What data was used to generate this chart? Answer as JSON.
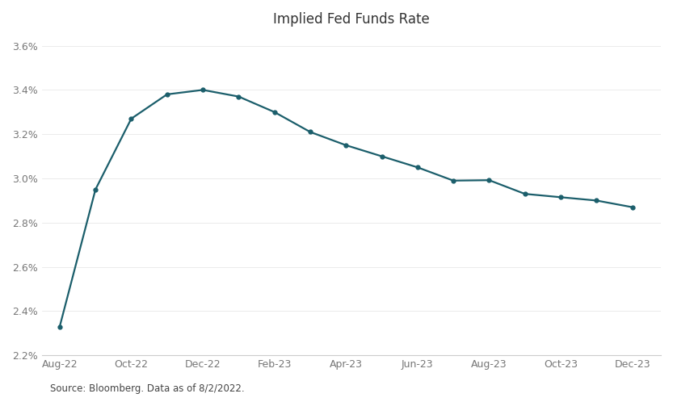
{
  "title": "Implied Fed Funds Rate",
  "source_text": "Source: Bloomberg. Data as of 8/2/2022.",
  "line_color": "#1b5e6b",
  "background_color": "#ffffff",
  "x_tick_labels": [
    "Aug-22",
    "Oct-22",
    "Dec-22",
    "Feb-23",
    "Apr-23",
    "Jun-23",
    "Aug-23",
    "Oct-23",
    "Dec-23"
  ],
  "x_tick_months": [
    0,
    2,
    4,
    6,
    8,
    10,
    12,
    14,
    16
  ],
  "data_points": [
    {
      "month": 0,
      "y": 2.33
    },
    {
      "month": 1,
      "y": 2.95
    },
    {
      "month": 2,
      "y": 3.27
    },
    {
      "month": 3,
      "y": 3.38
    },
    {
      "month": 4,
      "y": 3.4
    },
    {
      "month": 5,
      "y": 3.37
    },
    {
      "month": 6,
      "y": 3.3
    },
    {
      "month": 7,
      "y": 3.21
    },
    {
      "month": 8,
      "y": 3.15
    },
    {
      "month": 9,
      "y": 3.1
    },
    {
      "month": 10,
      "y": 3.05
    },
    {
      "month": 11,
      "y": 2.99
    },
    {
      "month": 12,
      "y": 2.992
    },
    {
      "month": 13,
      "y": 2.93
    },
    {
      "month": 14,
      "y": 2.915
    },
    {
      "month": 15,
      "y": 2.9
    },
    {
      "month": 16,
      "y": 2.87
    }
  ],
  "ylim": [
    2.2,
    3.65
  ],
  "yticks": [
    2.2,
    2.4,
    2.6,
    2.8,
    3.0,
    3.2,
    3.4,
    3.6
  ],
  "title_fontsize": 12,
  "tick_fontsize": 9,
  "source_fontsize": 8.5,
  "line_width": 1.6,
  "marker_size": 3.5
}
